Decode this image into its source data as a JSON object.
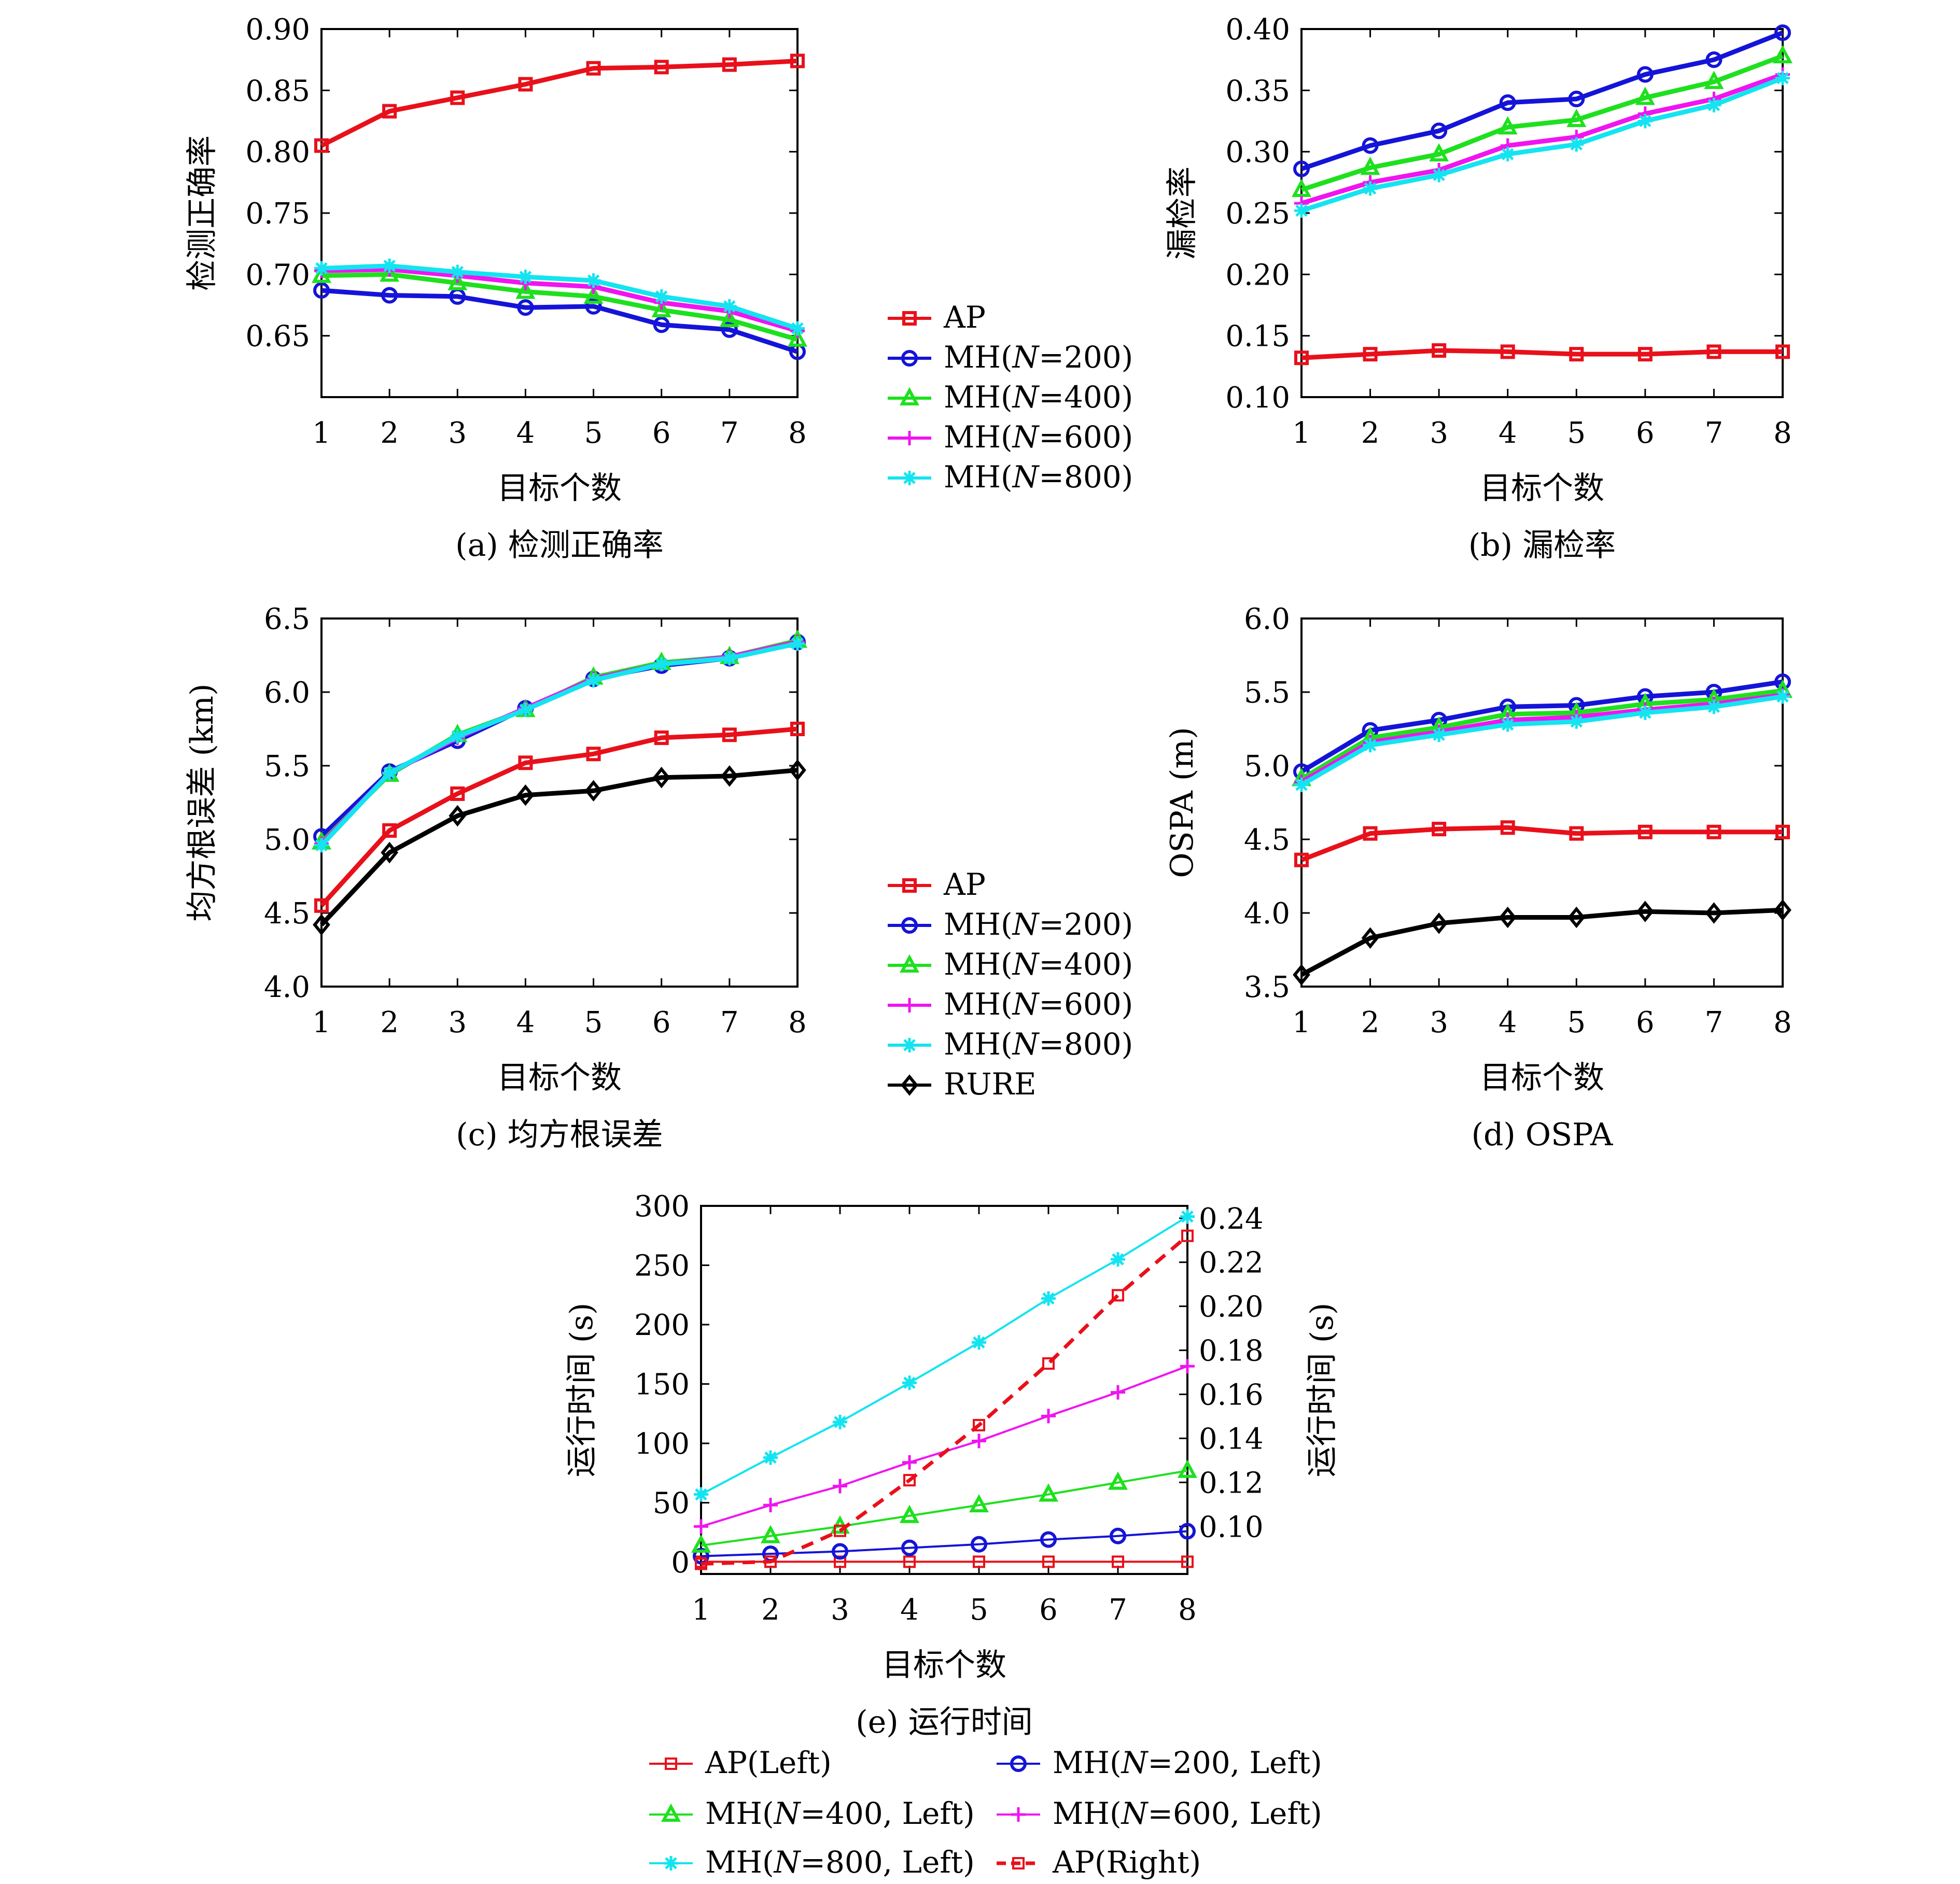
{
  "colors": {
    "ap": "#e8101a",
    "mh200": "#1414d8",
    "mh400": "#1ee01e",
    "mh600": "#f014f0",
    "mh800": "#14e4f0",
    "rure": "#000000"
  },
  "chart_data": [
    {
      "id": "a",
      "type": "line",
      "caption": "(a) 检测正确率",
      "xlabel": "目标个数",
      "ylabel": "检测正确率",
      "x": [
        1,
        2,
        3,
        4,
        5,
        6,
        7,
        8
      ],
      "xlim": [
        1,
        8
      ],
      "ylim": [
        0.6,
        0.9
      ],
      "yticks": [
        0.65,
        0.7,
        0.75,
        0.8,
        0.85,
        0.9
      ],
      "ytick_labels": [
        "0.65",
        "0.70",
        "0.75",
        "0.80",
        "0.85",
        "0.90"
      ],
      "legend": "outside-right",
      "series": [
        {
          "name": "AP",
          "color_key": "ap",
          "marker": "square",
          "values": [
            0.805,
            0.833,
            0.844,
            0.855,
            0.868,
            0.869,
            0.871,
            0.874
          ]
        },
        {
          "name": "MH(N=200)",
          "color_key": "mh200",
          "marker": "circle",
          "values": [
            0.687,
            0.683,
            0.682,
            0.673,
            0.674,
            0.659,
            0.655,
            0.637
          ]
        },
        {
          "name": "MH(N=400)",
          "color_key": "mh400",
          "marker": "triangle",
          "values": [
            0.699,
            0.7,
            0.693,
            0.686,
            0.682,
            0.671,
            0.663,
            0.647
          ]
        },
        {
          "name": "MH(N=600)",
          "color_key": "mh600",
          "marker": "plus",
          "values": [
            0.703,
            0.704,
            0.699,
            0.693,
            0.69,
            0.677,
            0.67,
            0.654
          ]
        },
        {
          "name": "MH(N=800)",
          "color_key": "mh800",
          "marker": "star",
          "values": [
            0.705,
            0.707,
            0.702,
            0.698,
            0.695,
            0.682,
            0.674,
            0.656
          ]
        }
      ]
    },
    {
      "id": "b",
      "type": "line",
      "caption": "(b) 漏检率",
      "xlabel": "目标个数",
      "ylabel": "漏检率",
      "x": [
        1,
        2,
        3,
        4,
        5,
        6,
        7,
        8
      ],
      "xlim": [
        1,
        8
      ],
      "ylim": [
        0.1,
        0.4
      ],
      "yticks": [
        0.1,
        0.15,
        0.2,
        0.25,
        0.3,
        0.35,
        0.4
      ],
      "ytick_labels": [
        "0.10",
        "0.15",
        "0.20",
        "0.25",
        "0.30",
        "0.35",
        "0.40"
      ],
      "series": [
        {
          "name": "AP",
          "color_key": "ap",
          "marker": "square",
          "values": [
            0.132,
            0.135,
            0.138,
            0.137,
            0.135,
            0.135,
            0.137,
            0.137
          ]
        },
        {
          "name": "MH(N=200)",
          "color_key": "mh200",
          "marker": "circle",
          "values": [
            0.286,
            0.305,
            0.317,
            0.34,
            0.343,
            0.363,
            0.375,
            0.397
          ]
        },
        {
          "name": "MH(N=400)",
          "color_key": "mh400",
          "marker": "triangle",
          "values": [
            0.269,
            0.287,
            0.298,
            0.32,
            0.326,
            0.344,
            0.357,
            0.378
          ]
        },
        {
          "name": "MH(N=600)",
          "color_key": "mh600",
          "marker": "plus",
          "values": [
            0.258,
            0.275,
            0.285,
            0.305,
            0.312,
            0.331,
            0.343,
            0.363
          ]
        },
        {
          "name": "MH(N=800)",
          "color_key": "mh800",
          "marker": "star",
          "values": [
            0.252,
            0.27,
            0.281,
            0.298,
            0.306,
            0.325,
            0.338,
            0.36
          ]
        }
      ]
    },
    {
      "id": "c",
      "type": "line",
      "caption": "(c) 均方根误差",
      "xlabel": "目标个数",
      "ylabel": "均方根误差 (km)",
      "x": [
        1,
        2,
        3,
        4,
        5,
        6,
        7,
        8
      ],
      "xlim": [
        1,
        8
      ],
      "ylim": [
        4.0,
        6.5
      ],
      "yticks": [
        4.0,
        4.5,
        5.0,
        5.5,
        6.0,
        6.5
      ],
      "ytick_labels": [
        "4.0",
        "4.5",
        "5.0",
        "5.5",
        "6.0",
        "6.5"
      ],
      "legend": "outside-right",
      "series": [
        {
          "name": "AP",
          "color_key": "ap",
          "marker": "square",
          "values": [
            4.55,
            5.06,
            5.31,
            5.52,
            5.58,
            5.69,
            5.71,
            5.75
          ]
        },
        {
          "name": "MH(N=200)",
          "color_key": "mh200",
          "marker": "circle",
          "values": [
            5.02,
            5.46,
            5.67,
            5.89,
            6.09,
            6.18,
            6.23,
            6.34
          ]
        },
        {
          "name": "MH(N=400)",
          "color_key": "mh400",
          "marker": "triangle",
          "values": [
            4.98,
            5.44,
            5.71,
            5.88,
            6.1,
            6.2,
            6.24,
            6.35
          ]
        },
        {
          "name": "MH(N=600)",
          "color_key": "mh600",
          "marker": "plus",
          "values": [
            4.97,
            5.45,
            5.69,
            5.89,
            6.09,
            6.19,
            6.24,
            6.34
          ]
        },
        {
          "name": "MH(N=800)",
          "color_key": "mh800",
          "marker": "star",
          "values": [
            4.96,
            5.45,
            5.7,
            5.88,
            6.08,
            6.19,
            6.23,
            6.33
          ]
        },
        {
          "name": "RURE",
          "color_key": "rure",
          "marker": "diamond",
          "values": [
            4.42,
            4.91,
            5.16,
            5.3,
            5.33,
            5.42,
            5.43,
            5.47
          ]
        }
      ]
    },
    {
      "id": "d",
      "type": "line",
      "caption": "(d) OSPA",
      "xlabel": "目标个数",
      "ylabel": "OSPA (m)",
      "x": [
        1,
        2,
        3,
        4,
        5,
        6,
        7,
        8
      ],
      "xlim": [
        1,
        8
      ],
      "ylim": [
        3.5,
        6.0
      ],
      "yticks": [
        3.5,
        4.0,
        4.5,
        5.0,
        5.5,
        6.0
      ],
      "ytick_labels": [
        "3.5",
        "4.0",
        "4.5",
        "5.0",
        "5.5",
        "6.0"
      ],
      "series": [
        {
          "name": "AP",
          "color_key": "ap",
          "marker": "square",
          "values": [
            4.36,
            4.54,
            4.57,
            4.58,
            4.54,
            4.55,
            4.55,
            4.55
          ]
        },
        {
          "name": "MH(N=200)",
          "color_key": "mh200",
          "marker": "circle",
          "values": [
            4.96,
            5.24,
            5.31,
            5.4,
            5.41,
            5.47,
            5.5,
            5.57
          ]
        },
        {
          "name": "MH(N=400)",
          "color_key": "mh400",
          "marker": "triangle",
          "values": [
            4.91,
            5.19,
            5.26,
            5.35,
            5.36,
            5.42,
            5.45,
            5.51
          ]
        },
        {
          "name": "MH(N=600)",
          "color_key": "mh600",
          "marker": "plus",
          "values": [
            4.89,
            5.16,
            5.23,
            5.31,
            5.33,
            5.38,
            5.42,
            5.48
          ]
        },
        {
          "name": "MH(N=800)",
          "color_key": "mh800",
          "marker": "star",
          "values": [
            4.87,
            5.14,
            5.21,
            5.28,
            5.3,
            5.36,
            5.4,
            5.47
          ]
        },
        {
          "name": "RURE",
          "color_key": "rure",
          "marker": "diamond",
          "values": [
            3.58,
            3.83,
            3.93,
            3.97,
            3.97,
            4.01,
            4.0,
            4.02
          ]
        }
      ]
    },
    {
      "id": "e",
      "type": "line",
      "caption": "(e) 运行时间",
      "xlabel": "目标个数",
      "ylabel": "运行时间 (s)",
      "ylabel_right": "运行时间 (s)",
      "x": [
        1,
        2,
        3,
        4,
        5,
        6,
        7,
        8
      ],
      "xlim": [
        1,
        8
      ],
      "ylim": [
        -10,
        300
      ],
      "ylim_right": [
        0.0784,
        0.2456
      ],
      "yticks": [
        0,
        50,
        100,
        150,
        200,
        250,
        300
      ],
      "ytick_labels": [
        "0",
        "50",
        "100",
        "150",
        "200",
        "250",
        "300"
      ],
      "yticks_right": [
        0.1,
        0.12,
        0.14,
        0.16,
        0.18,
        0.2,
        0.22,
        0.24
      ],
      "ytick_labels_right": [
        "0.10",
        "0.12",
        "0.14",
        "0.16",
        "0.18",
        "0.20",
        "0.22",
        "0.24"
      ],
      "legend": "bottom",
      "series": [
        {
          "name": "AP(Left)",
          "color_key": "ap",
          "marker": "square-open",
          "axis": "left",
          "values": [
            0.3,
            0.3,
            0.3,
            0.3,
            0.3,
            0.3,
            0.3,
            0.3
          ]
        },
        {
          "name": "MH(N=200, Left)",
          "color_key": "mh200",
          "marker": "circle",
          "axis": "left",
          "values": [
            5,
            7,
            9,
            12,
            15,
            19,
            22,
            26
          ]
        },
        {
          "name": "MH(N=400, Left)",
          "color_key": "mh400",
          "marker": "triangle",
          "axis": "left",
          "values": [
            14,
            22,
            30,
            39,
            48,
            57,
            67,
            77
          ]
        },
        {
          "name": "MH(N=600, Left)",
          "color_key": "mh600",
          "marker": "plus",
          "axis": "left",
          "values": [
            30,
            48,
            64,
            84,
            102,
            123,
            143,
            165
          ]
        },
        {
          "name": "MH(N=800, Left)",
          "color_key": "mh800",
          "marker": "star",
          "axis": "left",
          "values": [
            57,
            88,
            118,
            151,
            185,
            222,
            255,
            291
          ]
        },
        {
          "name": "AP(Right)",
          "color_key": "ap",
          "marker": "square-open",
          "axis": "right",
          "dashed": true,
          "values": [
            0.083,
            0.084,
            0.098,
            0.121,
            0.146,
            0.174,
            0.205,
            0.232
          ]
        }
      ]
    }
  ]
}
